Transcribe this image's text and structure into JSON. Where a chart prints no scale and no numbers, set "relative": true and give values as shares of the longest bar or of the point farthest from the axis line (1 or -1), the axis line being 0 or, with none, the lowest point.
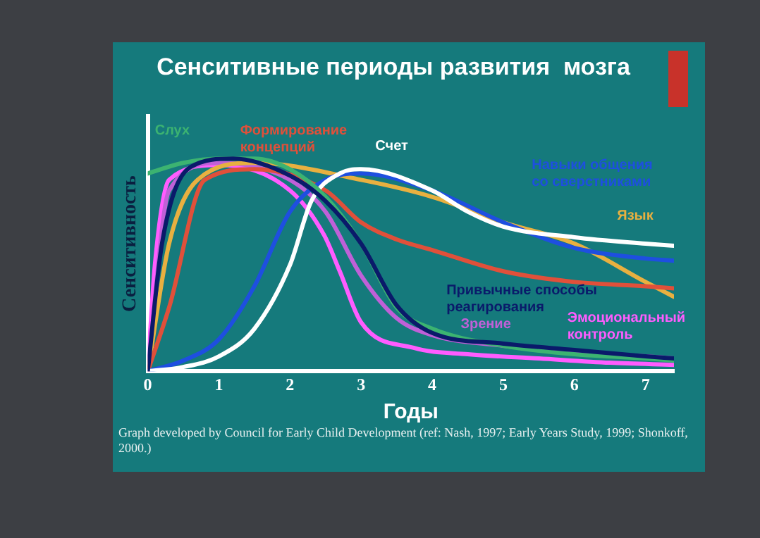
{
  "chart_data": {
    "type": "line",
    "title": "Сенситивные периоды развития  мозга",
    "xlabel": "Годы",
    "ylabel": "Сенситивность",
    "relative": true,
    "xlim": [
      0,
      7.4
    ],
    "xticks": [
      0,
      1,
      2,
      3,
      4,
      5,
      6,
      7
    ],
    "grid": false,
    "legend": false,
    "marker": "none",
    "line_style": "solid",
    "annotations": [
      "Graph developed by Council for Early Child Development (ref: Nash, 1997; Early Years Study, 1999; Shonkoff, 2000.)"
    ],
    "series": [
      {
        "name": "Слух",
        "color": "#3cb371",
        "x": [
          0,
          0.5,
          1,
          1.5,
          2,
          2.5,
          3,
          3.5,
          4,
          5,
          6,
          7,
          7.4
        ],
        "values": [
          0.93,
          0.98,
          1.0,
          1.0,
          0.95,
          0.82,
          0.6,
          0.3,
          0.2,
          0.12,
          0.08,
          0.06,
          0.05
        ]
      },
      {
        "name": "Счет",
        "color": "#ffffff",
        "x": [
          0,
          0.5,
          1,
          1.5,
          2,
          2.3,
          2.7,
          3,
          4,
          4.5,
          5,
          6,
          7,
          7.4
        ],
        "values": [
          0,
          0.02,
          0.07,
          0.2,
          0.5,
          0.8,
          0.93,
          0.95,
          0.85,
          0.75,
          0.68,
          0.63,
          0.6,
          0.59
        ]
      },
      {
        "name": "Навыки общения со сверстниками",
        "color": "#1e4fe0",
        "x": [
          0,
          0.5,
          1,
          1.5,
          2,
          2.5,
          3,
          4,
          5,
          6,
          7,
          7.4
        ],
        "values": [
          0,
          0.05,
          0.15,
          0.4,
          0.75,
          0.9,
          0.93,
          0.85,
          0.7,
          0.58,
          0.53,
          0.52
        ]
      },
      {
        "name": "Формирование концепций",
        "color": "#e0503a",
        "x": [
          0,
          0.3,
          0.8,
          1.5,
          2.5,
          3,
          3.5,
          4,
          5,
          6,
          7,
          7.4
        ],
        "values": [
          0,
          0.3,
          0.9,
          0.95,
          0.85,
          0.7,
          0.62,
          0.57,
          0.47,
          0.42,
          0.4,
          0.39
        ]
      },
      {
        "name": "Язык",
        "color": "#e8b040",
        "x": [
          0,
          0.3,
          0.7,
          1.5,
          3,
          4,
          5,
          6,
          7,
          7.4
        ],
        "values": [
          0,
          0.6,
          0.9,
          0.98,
          0.9,
          0.82,
          0.7,
          0.6,
          0.42,
          0.35
        ]
      },
      {
        "name": "Привычные способы реагирования",
        "color": "#0a1a6a",
        "x": [
          0,
          0.2,
          0.6,
          1.2,
          2,
          2.5,
          3,
          3.5,
          4,
          5,
          6,
          7,
          7.4
        ],
        "values": [
          0,
          0.6,
          0.96,
          1.0,
          0.92,
          0.8,
          0.6,
          0.31,
          0.18,
          0.13,
          0.1,
          0.07,
          0.06
        ]
      },
      {
        "name": "Зрение",
        "color": "#c060d8",
        "x": [
          0,
          0.3,
          1,
          2,
          2.5,
          3,
          3.5,
          4,
          5,
          6,
          7,
          7.4
        ],
        "values": [
          0,
          0.85,
          0.98,
          0.9,
          0.75,
          0.45,
          0.25,
          0.17,
          0.12,
          0.09,
          0.07,
          0.06
        ]
      },
      {
        "name": "Эмоциональный контроль",
        "color": "#ff5cff",
        "x": [
          0,
          0.1,
          0.3,
          1,
          2,
          2.48,
          2.7,
          3,
          3.74,
          4.5,
          5.5,
          6.5,
          7.4
        ],
        "values": [
          0,
          0.5,
          0.9,
          0.97,
          0.85,
          0.64,
          0.47,
          0.23,
          0.11,
          0.08,
          0.06,
          0.04,
          0.03
        ]
      }
    ]
  }
}
